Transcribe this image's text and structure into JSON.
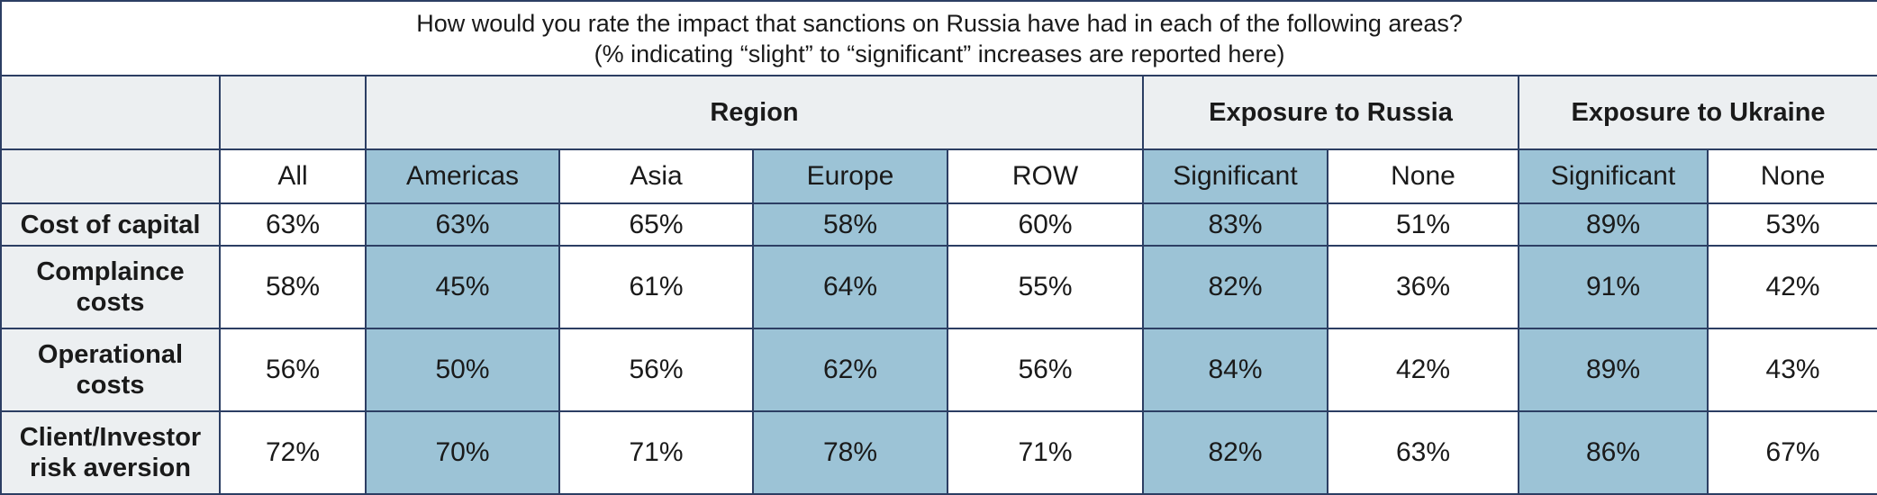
{
  "title_line1": "How would you rate the impact that sanctions on Russia have had in each of the following areas?",
  "title_line2": "(% indicating “slight” to “significant” increases are reported here)",
  "groups": {
    "region": "Region",
    "russia": "Exposure to Russia",
    "ukraine": "Exposure to Ukraine"
  },
  "columns": [
    "All",
    "Americas",
    "Asia",
    "Europe",
    "ROW",
    "Significant",
    "None",
    "Significant",
    "None"
  ],
  "rows": [
    {
      "label_line1": "Cost of capital",
      "label_line2": "",
      "values": [
        "63%",
        "63%",
        "65%",
        "58%",
        "60%",
        "83%",
        "51%",
        "89%",
        "53%"
      ]
    },
    {
      "label_line1": "Complaince",
      "label_line2": "costs",
      "values": [
        "58%",
        "45%",
        "61%",
        "64%",
        "55%",
        "82%",
        "36%",
        "91%",
        "42%"
      ]
    },
    {
      "label_line1": "Operational",
      "label_line2": "costs",
      "values": [
        "56%",
        "50%",
        "56%",
        "62%",
        "56%",
        "84%",
        "42%",
        "89%",
        "43%"
      ]
    },
    {
      "label_line1": "Client/Investor",
      "label_line2": "risk aversion",
      "values": [
        "72%",
        "70%",
        "71%",
        "78%",
        "71%",
        "82%",
        "63%",
        "86%",
        "67%"
      ]
    }
  ],
  "colors": {
    "highlight": "#9cc3d6",
    "header_bg": "#eceff1",
    "border": "#2c3e63"
  },
  "chart_data": {
    "type": "table",
    "title": "How would you rate the impact that sanctions on Russia have had in each of the following areas? (% indicating “slight” to “significant” increases are reported here)",
    "column_groups": [
      {
        "name": "",
        "columns": [
          "All"
        ]
      },
      {
        "name": "Region",
        "columns": [
          "Americas",
          "Asia",
          "Europe",
          "ROW"
        ]
      },
      {
        "name": "Exposure to Russia",
        "columns": [
          "Significant",
          "None"
        ]
      },
      {
        "name": "Exposure to Ukraine",
        "columns": [
          "Significant",
          "None"
        ]
      }
    ],
    "row_labels": [
      "Cost of capital",
      "Complaince costs",
      "Operational costs",
      "Client/Investor risk aversion"
    ],
    "values": [
      [
        63,
        63,
        65,
        58,
        60,
        83,
        51,
        89,
        53
      ],
      [
        58,
        45,
        61,
        64,
        55,
        82,
        36,
        91,
        42
      ],
      [
        56,
        50,
        56,
        62,
        56,
        84,
        42,
        89,
        43
      ],
      [
        72,
        70,
        71,
        78,
        71,
        82,
        63,
        86,
        67
      ]
    ],
    "unit": "%"
  }
}
